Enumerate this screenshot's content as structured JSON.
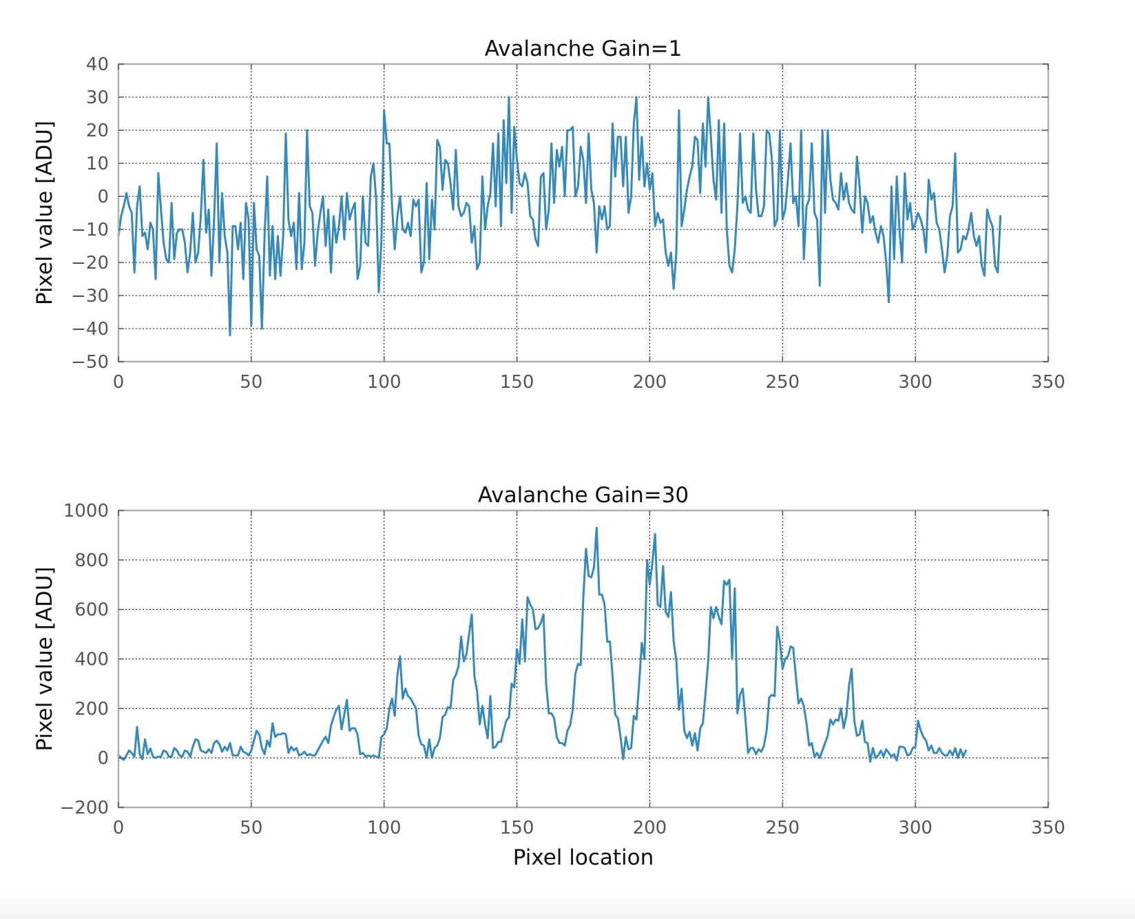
{
  "chart_data": [
    {
      "type": "line",
      "title": "Avalanche Gain=1",
      "xlabel": "",
      "ylabel": "Pixel value [ADU]",
      "xlim": [
        0,
        350
      ],
      "ylim": [
        -50,
        40
      ],
      "xticks": [
        "0",
        "50",
        "100",
        "150",
        "200",
        "250",
        "300",
        "350"
      ],
      "yticks": [
        "−50",
        "−40",
        "−30",
        "−20",
        "−10",
        "0",
        "10",
        "20",
        "30",
        "40"
      ],
      "grid": true,
      "line_color": "#348abd",
      "x_start": 0,
      "x_step": 1,
      "values": [
        -12,
        -6,
        -3,
        1,
        -3,
        -5,
        -23,
        -3,
        3,
        -12,
        -11,
        -16,
        -8,
        -10,
        -25,
        7,
        -4,
        -14,
        -19,
        -20,
        -2,
        -19,
        -11,
        -10,
        -10,
        -14,
        -23,
        -17,
        -5,
        -20,
        -17,
        -6,
        11,
        -11,
        -4,
        -24,
        -7,
        16,
        -20,
        1,
        -12,
        -17,
        -42,
        -9,
        -9,
        -16,
        -8,
        -25,
        -2,
        -7,
        -39,
        -2,
        -16,
        -18,
        -40,
        -12,
        6,
        -24,
        -9,
        -25,
        -12,
        -24,
        -12,
        19,
        -7,
        -12,
        -8,
        -22,
        1,
        -22,
        -14,
        20,
        -3,
        -5,
        -21,
        -11,
        -5,
        0,
        -15,
        -4,
        -23,
        -6,
        -14,
        -9,
        0,
        -13,
        1,
        -7,
        -4,
        -2,
        -25,
        -21,
        0,
        -14,
        -15,
        6,
        10,
        -1,
        -29,
        -13,
        26,
        16,
        16,
        -3,
        -16,
        -6,
        0,
        -10,
        -11,
        -8,
        -12,
        -1,
        -3,
        -1,
        -23,
        -20,
        4,
        -19,
        -1,
        -10,
        17,
        15,
        2,
        11,
        10,
        4,
        -4,
        14,
        -3,
        -6,
        -5,
        -2,
        -3,
        -14,
        -9,
        -22,
        -20,
        6,
        -10,
        -3,
        1,
        16,
        -3,
        19,
        -9,
        23,
        4,
        30,
        -5,
        21,
        11,
        4,
        3,
        7,
        4,
        -6,
        -7,
        -13,
        -15,
        6,
        7,
        -10,
        -4,
        16,
        -2,
        14,
        9,
        15,
        0,
        20,
        20,
        21,
        0,
        3,
        15,
        11,
        -2,
        19,
        2,
        -2,
        -17,
        -3,
        -7,
        -3,
        -10,
        -9,
        22,
        6,
        18,
        18,
        3,
        18,
        -5,
        0,
        22,
        30,
        5,
        18,
        3,
        10,
        2,
        7,
        -9,
        -5,
        -8,
        -7,
        -17,
        -21,
        -17,
        -28,
        -17,
        26,
        -9,
        -4,
        2,
        6,
        9,
        18,
        17,
        1,
        22,
        9,
        30,
        18,
        5,
        -1,
        23,
        -5,
        22,
        -10,
        -21,
        -23,
        -16,
        -3,
        19,
        -2,
        0,
        -4,
        -5,
        19,
        2,
        -6,
        -6,
        -3,
        20,
        19,
        11,
        -9,
        -7,
        20,
        -7,
        -4,
        5,
        16,
        -2,
        0,
        -9,
        20,
        -19,
        -3,
        -1,
        16,
        -5,
        -7,
        -27,
        20,
        -5,
        20,
        5,
        -1,
        -2,
        -4,
        7,
        -1,
        4,
        -2,
        -4,
        -5,
        12,
        3,
        -11,
        0,
        -2,
        -8,
        -6,
        -11,
        -14,
        -9,
        -12,
        -20,
        -32,
        3,
        -19,
        6,
        -10,
        -20,
        7,
        -7,
        -2,
        -10,
        -8,
        -5,
        -7,
        -10,
        -17,
        5,
        -1,
        1,
        -8,
        -10,
        -16,
        -23,
        -18,
        -6,
        -3,
        13,
        -17,
        -16,
        -12,
        -13,
        -10,
        -5,
        -12,
        -15,
        -12,
        -21,
        -24,
        -4,
        -7,
        -9,
        -21,
        -23,
        -6
      ]
    },
    {
      "type": "line",
      "title": "Avalanche Gain=30",
      "xlabel": "Pixel location",
      "ylabel": "Pixel value [ADU]",
      "xlim": [
        0,
        350
      ],
      "ylim": [
        -200,
        1000
      ],
      "xticks": [
        "0",
        "50",
        "100",
        "150",
        "200",
        "250",
        "300",
        "350"
      ],
      "yticks": [
        "−200",
        "0",
        "200",
        "400",
        "600",
        "800",
        "1000"
      ],
      "grid": true,
      "line_color": "#348abd",
      "x_start": 0,
      "x_step": 1,
      "values": [
        12,
        0,
        -8,
        10,
        30,
        20,
        5,
        125,
        15,
        -5,
        75,
        15,
        38,
        5,
        0,
        5,
        5,
        30,
        25,
        5,
        5,
        40,
        30,
        10,
        5,
        30,
        25,
        5,
        45,
        75,
        70,
        30,
        25,
        20,
        35,
        20,
        60,
        70,
        55,
        25,
        45,
        30,
        60,
        10,
        10,
        10,
        45,
        25,
        20,
        10,
        30,
        70,
        110,
        95,
        40,
        15,
        70,
        45,
        140,
        85,
        95,
        95,
        100,
        95,
        20,
        45,
        30,
        40,
        10,
        15,
        25,
        10,
        15,
        10,
        10,
        30,
        50,
        70,
        85,
        60,
        130,
        165,
        195,
        210,
        115,
        175,
        235,
        110,
        120,
        120,
        95,
        15,
        20,
        5,
        10,
        5,
        10,
        5,
        0,
        85,
        95,
        120,
        200,
        240,
        170,
        335,
        410,
        240,
        280,
        250,
        240,
        220,
        200,
        90,
        55,
        50,
        0,
        75,
        0,
        40,
        50,
        80,
        165,
        175,
        205,
        200,
        315,
        335,
        370,
        490,
        390,
        420,
        500,
        580,
        330,
        270,
        135,
        210,
        135,
        80,
        250,
        40,
        45,
        65,
        65,
        110,
        150,
        165,
        300,
        285,
        440,
        380,
        560,
        390,
        650,
        620,
        600,
        520,
        525,
        545,
        580,
        300,
        180,
        180,
        160,
        85,
        60,
        60,
        50,
        110,
        130,
        195,
        340,
        380,
        375,
        650,
        845,
        735,
        730,
        770,
        930,
        660,
        660,
        620,
        470,
        470,
        330,
        175,
        160,
        85,
        -5,
        85,
        35,
        40,
        170,
        155,
        300,
        465,
        400,
        800,
        700,
        790,
        905,
        620,
        610,
        775,
        590,
        570,
        670,
        470,
        395,
        195,
        280,
        110,
        80,
        105,
        50,
        100,
        30,
        120,
        140,
        260,
        390,
        610,
        565,
        610,
        570,
        540,
        715,
        700,
        720,
        400,
        685,
        180,
        255,
        280,
        160,
        20,
        40,
        40,
        15,
        35,
        25,
        50,
        110,
        245,
        255,
        250,
        530,
        470,
        360,
        400,
        410,
        450,
        445,
        330,
        220,
        240,
        210,
        140,
        50,
        60,
        5,
        20,
        0,
        30,
        60,
        90,
        155,
        135,
        155,
        150,
        200,
        120,
        170,
        290,
        360,
        150,
        90,
        95,
        150,
        65,
        60,
        -15,
        40,
        0,
        10,
        30,
        5,
        35,
        20,
        5,
        15,
        -10,
        45,
        45,
        40,
        10,
        15,
        40,
        45,
        150,
        110,
        85,
        70,
        30,
        50,
        20,
        20,
        40,
        20,
        10,
        10,
        30,
        10,
        40,
        0,
        35,
        5,
        30
      ]
    }
  ]
}
